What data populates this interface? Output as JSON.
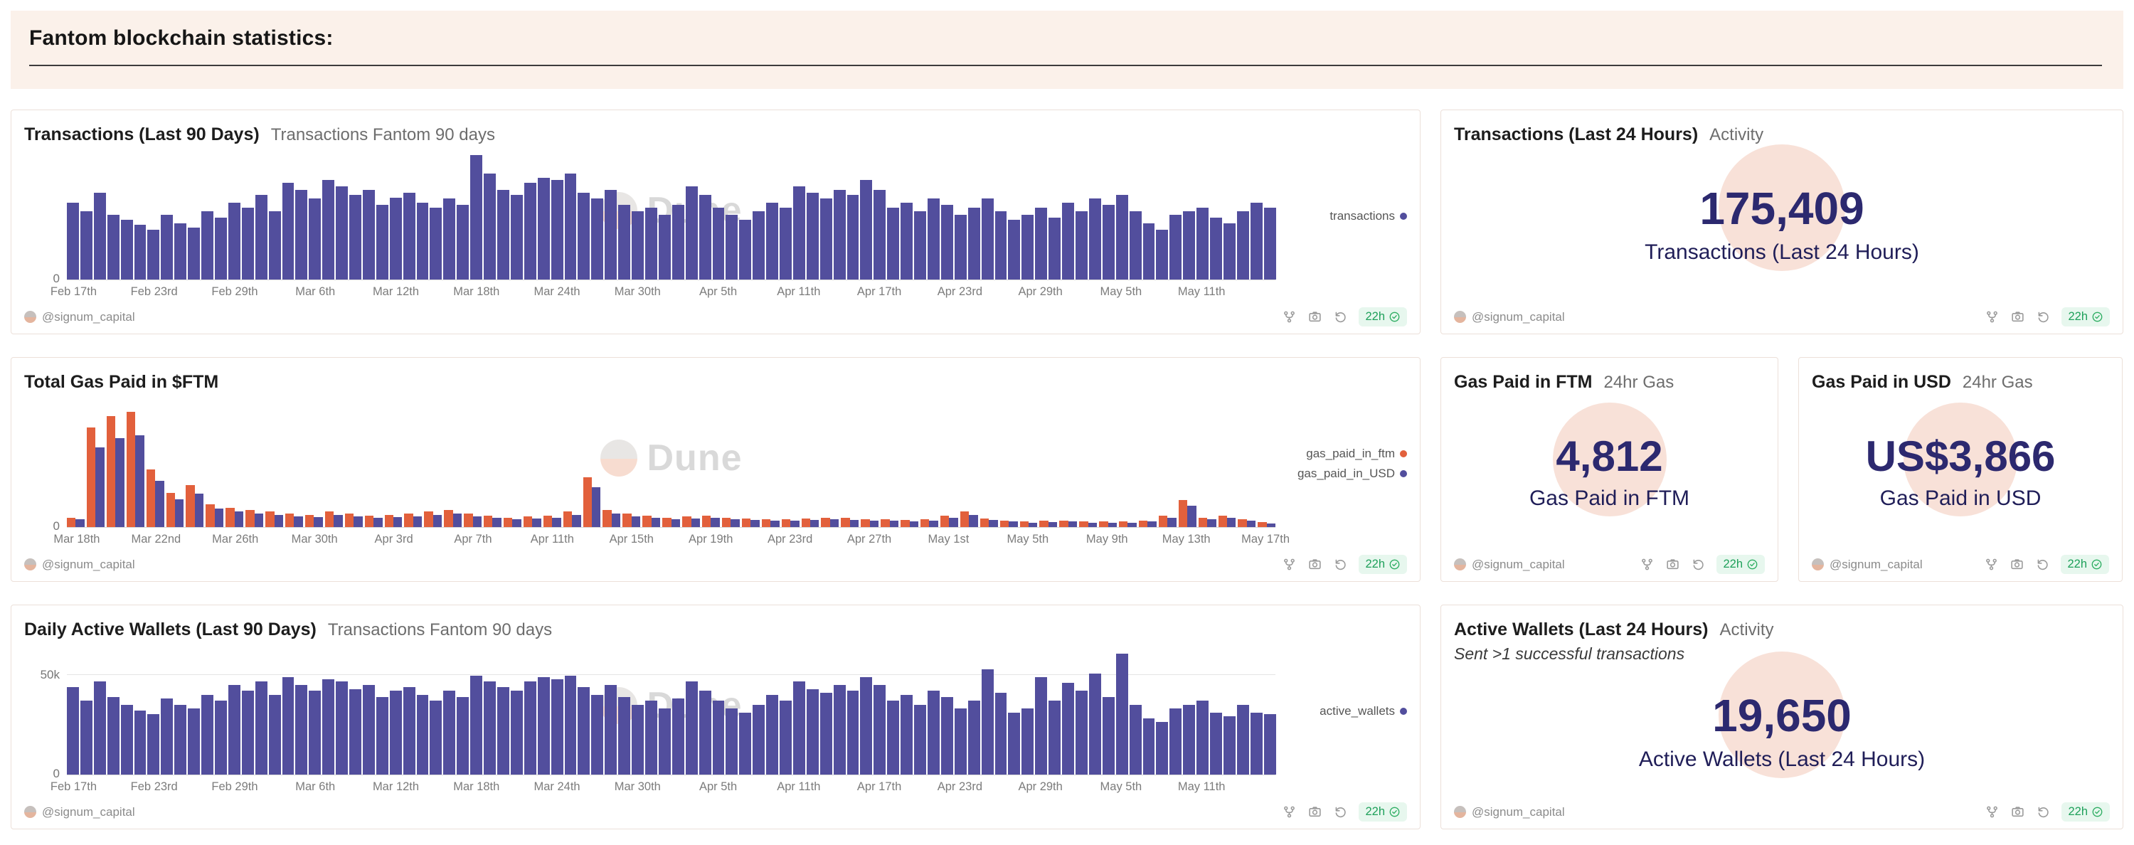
{
  "header": {
    "title": "Fantom blockchain statistics:"
  },
  "watermark": "Dune",
  "footer": {
    "author": "@signum_capital",
    "age": "22h"
  },
  "cards": {
    "tx90": {
      "title": "Transactions (Last 90 Days)",
      "subtitle": "Transactions Fantom 90 days"
    },
    "tx24": {
      "title": "Transactions (Last 24 Hours)",
      "subtitle": "Activity",
      "value": "175,409",
      "label": "Transactions (Last 24 Hours)"
    },
    "gas90": {
      "title": "Total Gas Paid in $FTM",
      "subtitle": ""
    },
    "gasftm": {
      "title": "Gas Paid in FTM",
      "subtitle": "24hr Gas",
      "value": "4,812",
      "label": "Gas Paid in FTM"
    },
    "gasusd": {
      "title": "Gas Paid in USD",
      "subtitle": "24hr Gas",
      "value": "US$3,866",
      "label": "Gas Paid in USD"
    },
    "wallets90": {
      "title": "Daily Active Wallets (Last 90 Days)",
      "subtitle": "Transactions Fantom 90 days"
    },
    "wallets24": {
      "title": "Active Wallets (Last 24 Hours)",
      "subtitle": "Activity",
      "note": "Sent >1 successful transactions",
      "value": "19,650",
      "label": "Active Wallets (Last 24 Hours)"
    }
  },
  "chart_data": [
    {
      "type": "bar",
      "title": "Transactions (Last 90 Days)",
      "x_start": "Feb 17th",
      "x_end": "May 16th",
      "x_unit": "day",
      "ymax": 100,
      "y_zero_label": "0",
      "note": "y-axis shows only 0; values are estimated relative heights (% of tallest bar, spike on Mar 18th)",
      "legend_position": "right",
      "group_gap": 2,
      "ticks": [
        {
          "i": 0,
          "label": "Feb 17th"
        },
        {
          "i": 6,
          "label": "Feb 23rd"
        },
        {
          "i": 12,
          "label": "Feb 29th"
        },
        {
          "i": 18,
          "label": "Mar 6th"
        },
        {
          "i": 24,
          "label": "Mar 12th"
        },
        {
          "i": 30,
          "label": "Mar 18th"
        },
        {
          "i": 36,
          "label": "Mar 24th"
        },
        {
          "i": 42,
          "label": "Mar 30th"
        },
        {
          "i": 48,
          "label": "Apr 5th"
        },
        {
          "i": 54,
          "label": "Apr 11th"
        },
        {
          "i": 60,
          "label": "Apr 17th"
        },
        {
          "i": 66,
          "label": "Apr 23rd"
        },
        {
          "i": 72,
          "label": "Apr 29th"
        },
        {
          "i": 78,
          "label": "May 5th"
        },
        {
          "i": 84,
          "label": "May 11th"
        }
      ],
      "series": [
        {
          "name": "transactions",
          "color": "#524e9d",
          "values": [
            62,
            55,
            70,
            52,
            48,
            44,
            40,
            52,
            45,
            42,
            55,
            50,
            62,
            58,
            68,
            55,
            78,
            72,
            65,
            80,
            75,
            68,
            72,
            60,
            66,
            70,
            62,
            58,
            65,
            60,
            100,
            85,
            72,
            68,
            78,
            82,
            80,
            85,
            70,
            65,
            72,
            60,
            55,
            58,
            52,
            60,
            75,
            68,
            58,
            52,
            48,
            55,
            62,
            58,
            75,
            70,
            65,
            72,
            68,
            80,
            72,
            58,
            62,
            55,
            65,
            60,
            52,
            58,
            65,
            55,
            48,
            52,
            58,
            50,
            62,
            55,
            65,
            60,
            68,
            55,
            45,
            40,
            52,
            55,
            58,
            50,
            45,
            55,
            62,
            58
          ]
        }
      ]
    },
    {
      "type": "bar",
      "title": "Total Gas Paid in $FTM",
      "x_start": "Mar 18th",
      "x_end": "May 17th",
      "x_unit": "day",
      "ymax": 65000,
      "y_zero_label": "0",
      "note": "grouped daily bars; values estimated in FTM / USD, large spike Mar 19th-21st, secondary spikes Apr 13th and May 13th",
      "legend_position": "right",
      "group_gap": 3,
      "ticks": [
        {
          "i": 0,
          "label": "Mar 18th"
        },
        {
          "i": 4,
          "label": "Mar 22nd"
        },
        {
          "i": 8,
          "label": "Mar 26th"
        },
        {
          "i": 12,
          "label": "Mar 30th"
        },
        {
          "i": 16,
          "label": "Apr 3rd"
        },
        {
          "i": 20,
          "label": "Apr 7th"
        },
        {
          "i": 24,
          "label": "Apr 11th"
        },
        {
          "i": 28,
          "label": "Apr 15th"
        },
        {
          "i": 32,
          "label": "Apr 19th"
        },
        {
          "i": 36,
          "label": "Apr 23rd"
        },
        {
          "i": 40,
          "label": "Apr 27th"
        },
        {
          "i": 44,
          "label": "May 1st"
        },
        {
          "i": 48,
          "label": "May 5th"
        },
        {
          "i": 52,
          "label": "May 9th"
        },
        {
          "i": 56,
          "label": "May 13th"
        },
        {
          "i": 60,
          "label": "May 17th"
        }
      ],
      "series": [
        {
          "name": "gas_paid_in_ftm",
          "color": "#e2603c",
          "values": [
            5000,
            52000,
            58000,
            60000,
            30000,
            18000,
            22000,
            12000,
            10000,
            9000,
            8000,
            7000,
            6500,
            8000,
            7000,
            6000,
            6500,
            7000,
            8000,
            9000,
            7000,
            6000,
            5000,
            5500,
            6000,
            8000,
            26000,
            9000,
            7000,
            6000,
            5000,
            5500,
            6000,
            5000,
            4500,
            4000,
            4200,
            4500,
            5000,
            4800,
            4200,
            4000,
            3800,
            4200,
            6000,
            8000,
            4500,
            3500,
            3000,
            3200,
            3500,
            3000,
            2800,
            3000,
            3500,
            6000,
            14000,
            5000,
            6000,
            4000,
            2500
          ]
        },
        {
          "name": "gas_paid_in_USD",
          "color": "#524e9d",
          "values": [
            4000,
            41600,
            46400,
            48000,
            24000,
            14400,
            17600,
            9600,
            8000,
            7200,
            6400,
            5600,
            5200,
            6400,
            5600,
            4800,
            5200,
            5600,
            6400,
            7200,
            5600,
            4800,
            4000,
            4400,
            4800,
            6400,
            20800,
            7200,
            5600,
            4800,
            4000,
            4400,
            4800,
            4000,
            3600,
            3200,
            3400,
            3600,
            4000,
            3800,
            3400,
            3200,
            3000,
            3400,
            4800,
            6400,
            3600,
            2800,
            2400,
            2600,
            2800,
            2400,
            2200,
            2400,
            2800,
            4800,
            11200,
            4000,
            4800,
            3200,
            2000
          ]
        }
      ]
    },
    {
      "type": "bar",
      "title": "Daily Active Wallets (Last 90 Days)",
      "x_start": "Feb 17th",
      "x_end": "May 16th",
      "x_unit": "day",
      "ymax": 64,
      "y_zero_label": "0",
      "y_unit": "thousands of wallets",
      "note": "values estimated in thousands from the 50k gridline; spike ~62k on May 5th",
      "gridlines": [
        {
          "value": 50,
          "label": "50k"
        }
      ],
      "legend_position": "right",
      "group_gap": 2,
      "ticks": [
        {
          "i": 0,
          "label": "Feb 17th"
        },
        {
          "i": 6,
          "label": "Feb 23rd"
        },
        {
          "i": 12,
          "label": "Feb 29th"
        },
        {
          "i": 18,
          "label": "Mar 6th"
        },
        {
          "i": 24,
          "label": "Mar 12th"
        },
        {
          "i": 30,
          "label": "Mar 18th"
        },
        {
          "i": 36,
          "label": "Mar 24th"
        },
        {
          "i": 42,
          "label": "Mar 30th"
        },
        {
          "i": 48,
          "label": "Apr 5th"
        },
        {
          "i": 54,
          "label": "Apr 11th"
        },
        {
          "i": 60,
          "label": "Apr 17th"
        },
        {
          "i": 66,
          "label": "Apr 23rd"
        },
        {
          "i": 72,
          "label": "Apr 29th"
        },
        {
          "i": 78,
          "label": "May 5th"
        },
        {
          "i": 84,
          "label": "May 11th"
        }
      ],
      "series": [
        {
          "name": "active_wallets",
          "color": "#524e9d",
          "values": [
            45,
            38,
            48,
            40,
            36,
            33,
            31,
            39,
            36,
            34,
            41,
            38,
            46,
            43,
            48,
            41,
            50,
            46,
            43,
            49,
            48,
            44,
            46,
            40,
            43,
            45,
            41,
            38,
            43,
            40,
            51,
            48,
            45,
            43,
            48,
            50,
            49,
            51,
            45,
            41,
            46,
            40,
            36,
            38,
            34,
            39,
            48,
            43,
            38,
            34,
            32,
            36,
            41,
            38,
            48,
            44,
            42,
            46,
            43,
            50,
            46,
            38,
            41,
            36,
            43,
            40,
            34,
            38,
            54,
            42,
            32,
            34,
            50,
            38,
            47,
            43,
            52,
            40,
            62,
            36,
            29,
            27,
            34,
            36,
            38,
            32,
            30,
            36,
            32,
            31
          ]
        }
      ]
    }
  ],
  "colors": {
    "bar_indigo": "#524e9d",
    "bar_orange": "#e2603c",
    "counter_navy": "#2c296f",
    "badge_green": "#1ea05a",
    "header_bg": "#fbf1ea",
    "watermark_circle_pink": "#f8e1d8"
  }
}
